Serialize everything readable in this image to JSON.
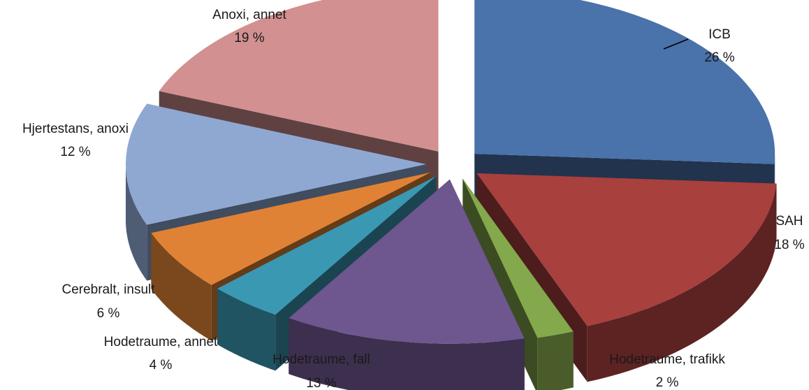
{
  "chart_data": {
    "type": "pie",
    "style": "3d-exploded",
    "title": "",
    "slices": [
      {
        "name": "ICB",
        "value": 26,
        "label": "26 %",
        "color": "#4a72ab"
      },
      {
        "name": "SAH",
        "value": 18,
        "label": "18 %",
        "color": "#a8403e"
      },
      {
        "name": "Hodetraume, trafikk",
        "value": 2,
        "label": "2 %",
        "color": "#84a84c"
      },
      {
        "name": "Hodetraume, fall",
        "value": 13,
        "label": "13 %",
        "color": "#6e568e"
      },
      {
        "name": "Hodetraume, annet",
        "value": 4,
        "label": "4 %",
        "color": "#3b98b3"
      },
      {
        "name": "Cerebralt, insult",
        "value": 6,
        "label": "6 %",
        "color": "#e08236"
      },
      {
        "name": "Hjertestans, anoxi",
        "value": 12,
        "label": "12 %",
        "color": "#8ea8d2"
      },
      {
        "name": "Anoxi, annet",
        "value": 19,
        "label": "19 %",
        "color": "#d29090"
      }
    ]
  }
}
